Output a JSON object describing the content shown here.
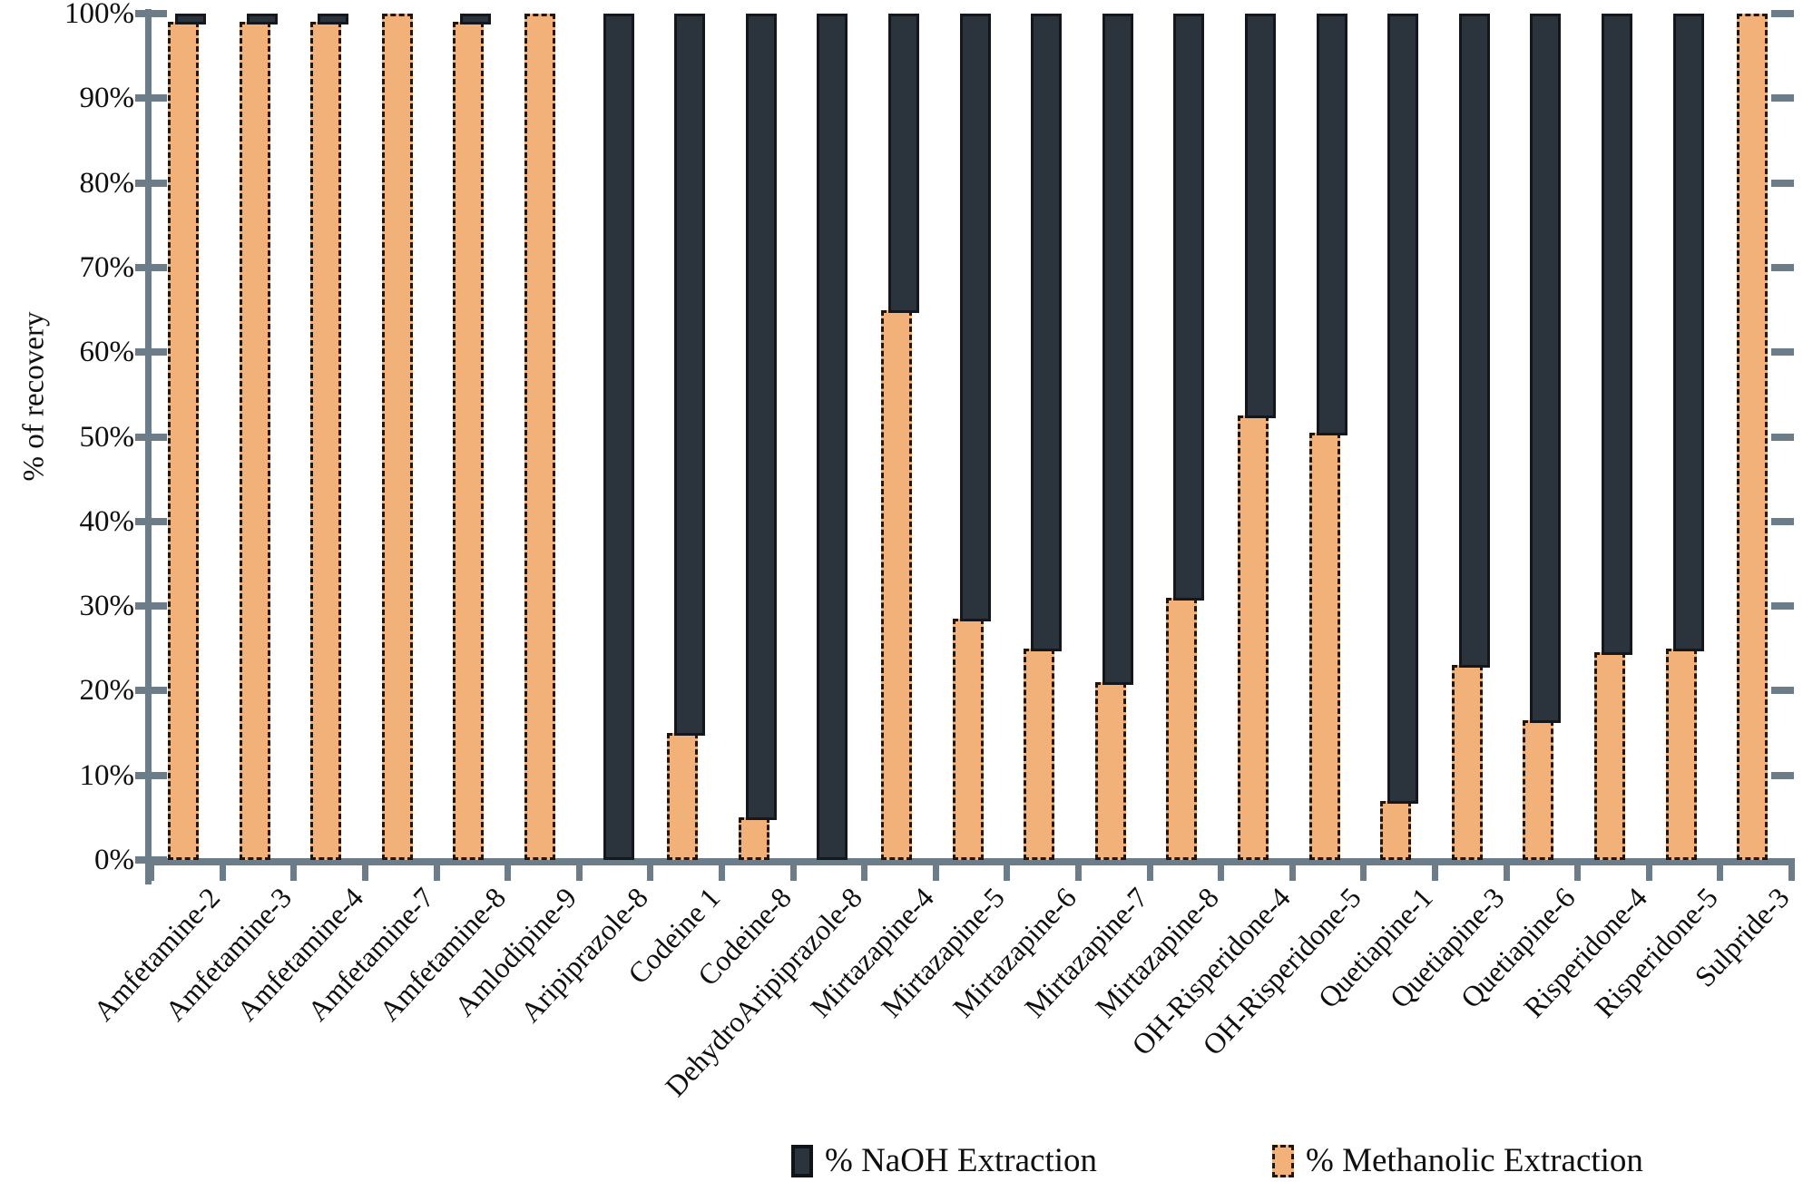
{
  "y_axis": {
    "title": "% of recovery",
    "tick_labels": [
      "100%",
      "90%",
      "80%",
      "70%",
      "60%",
      "50%",
      "40%",
      "30%",
      "20%",
      "10%",
      "0%"
    ],
    "tick_values": [
      100,
      90,
      80,
      70,
      60,
      50,
      40,
      30,
      20,
      10,
      0
    ]
  },
  "legend": {
    "items": [
      {
        "label": "% NaOH Extraction"
      },
      {
        "label": "% Methanolic Extraction"
      }
    ]
  },
  "chart_data": {
    "type": "bar",
    "stacking": "percent",
    "title": "",
    "xlabel": "",
    "ylabel": "% of recovery",
    "ylim": [
      0,
      100
    ],
    "grid": false,
    "legend_position": "bottom",
    "axis_color": "#6d7c89",
    "categories": [
      "Amfetamine-2",
      "Amfetamine-3",
      "Amfetamine-4",
      "Amfetamine-7",
      "Amfetamine-8",
      "Amlodipine-9",
      "Aripiprazole-8",
      "Codeine 1",
      "Codeine-8",
      "DehydroAripiprazole-8",
      "Mirtazapine-4",
      "Mirtazapine-5",
      "Mirtazapine-6",
      "Mirtazapine-7",
      "Mirtazapine-8",
      "OH-Risperidone-4",
      "OH-Risperidone-5",
      "Quetiapine-1",
      "Quetiapine-3",
      "Quetiapine-6",
      "Risperidone-4",
      "Risperidone-5",
      "Sulpride-3"
    ],
    "series": [
      {
        "name": "% NaOH Extraction",
        "color": "#2b343d",
        "border_color": "#14181d",
        "border_style": "solid",
        "values": [
          1,
          1,
          1,
          0,
          1,
          0,
          100,
          85,
          95,
          100,
          35,
          71.5,
          75,
          79,
          69,
          47.5,
          49.5,
          93,
          77,
          83.5,
          75.5,
          75,
          0
        ]
      },
      {
        "name": "% Methanolic Extraction",
        "color": "#f2b179",
        "border_color": "#241503",
        "border_style": "dashed",
        "values": [
          99,
          99,
          99,
          100,
          99,
          100,
          0,
          15,
          5,
          0,
          65,
          28.5,
          25,
          21,
          31,
          52.5,
          50.5,
          7,
          23,
          16.5,
          24.5,
          25,
          100
        ]
      }
    ]
  }
}
